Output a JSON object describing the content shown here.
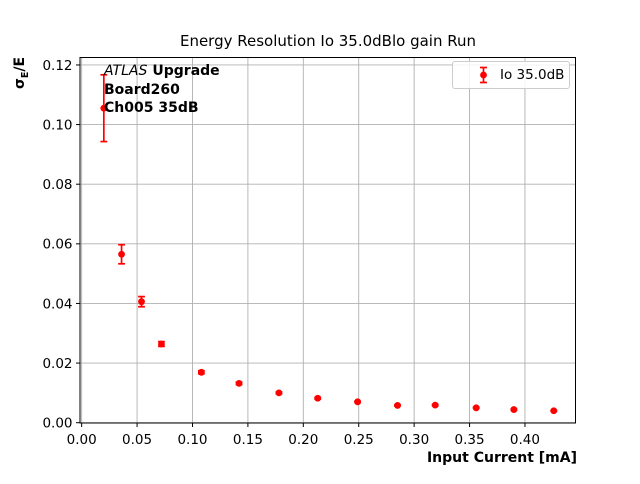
{
  "figure": {
    "background": "#ffffff"
  },
  "annotation": {
    "line1_italic": "ATLAS",
    "line1_bold": "Upgrade",
    "line2": "Board260",
    "line3": "Ch005 35dB"
  },
  "legend": {
    "label": "Io 35.0dB"
  },
  "chart_data": {
    "type": "scatter",
    "title": "Energy Resolution Io 35.0dBlo gain Run",
    "xlabel": "Input Current [mA]",
    "ylabel": "σ_E/E",
    "ylabel_display": {
      "sigma": "σ",
      "sub": "E",
      "rest": "/E"
    },
    "xlim": [
      -0.0015,
      0.4456
    ],
    "ylim": [
      -0.0001,
      0.1225
    ],
    "xtick_values": [
      0,
      0.05,
      0.1,
      0.15,
      0.2,
      0.25,
      0.3,
      0.35,
      0.4
    ],
    "xtick_labels": [
      "0.00",
      "0.05",
      "0.10",
      "0.15",
      "0.20",
      "0.25",
      "0.30",
      "0.35",
      "0.40"
    ],
    "ytick_values": [
      0,
      0.02,
      0.04,
      0.06,
      0.08,
      0.1,
      0.12
    ],
    "ytick_labels": [
      "0.00",
      "0.02",
      "0.04",
      "0.06",
      "0.08",
      "0.10",
      "0.12"
    ],
    "grid": true,
    "legend_position": "upper right",
    "colors": {
      "series": "#ff0000",
      "grid": "#b0b0b0",
      "spine": "#000000"
    },
    "series": [
      {
        "name": "Io 35.0dB",
        "marker": "o",
        "color": "#ff0000",
        "points": [
          {
            "x": 0.02,
            "y": 0.1055,
            "err": 0.0112
          },
          {
            "x": 0.036,
            "y": 0.0565,
            "err": 0.0032
          },
          {
            "x": 0.054,
            "y": 0.0406,
            "err": 0.0017
          },
          {
            "x": 0.072,
            "y": 0.0264,
            "err": 0.0008
          },
          {
            "x": 0.108,
            "y": 0.0169,
            "err": 0.0005
          },
          {
            "x": 0.142,
            "y": 0.0132,
            "err": 0.0004
          },
          {
            "x": 0.178,
            "y": 0.01,
            "err": 0.0003
          },
          {
            "x": 0.213,
            "y": 0.0082,
            "err": 0.0003
          },
          {
            "x": 0.249,
            "y": 0.007,
            "err": 0.0002
          },
          {
            "x": 0.285,
            "y": 0.0058,
            "err": 0.0002
          },
          {
            "x": 0.319,
            "y": 0.0059,
            "err": 0.0002
          },
          {
            "x": 0.356,
            "y": 0.005,
            "err": 0.0002
          },
          {
            "x": 0.39,
            "y": 0.0044,
            "err": 0.0002
          },
          {
            "x": 0.426,
            "y": 0.004,
            "err": 0.0001
          }
        ]
      }
    ]
  }
}
